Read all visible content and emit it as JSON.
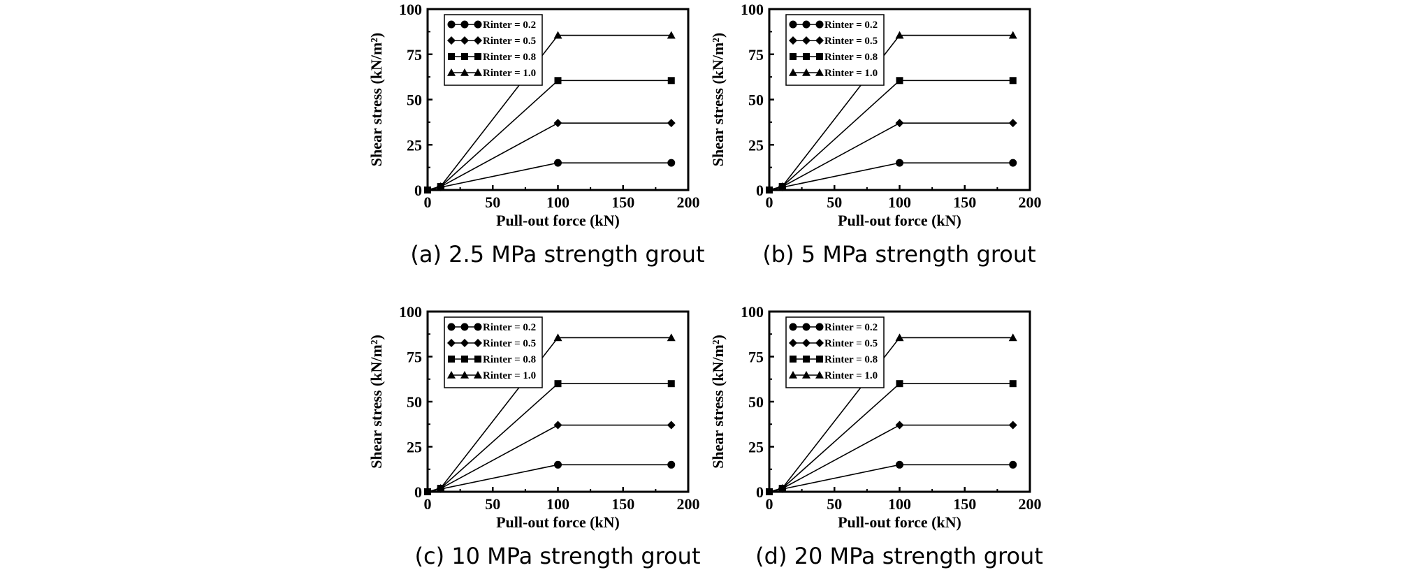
{
  "chart_data": [
    {
      "type": "line",
      "caption": "(a) 2.5 MPa strength grout",
      "xlabel": "Pull-out force (kN)",
      "ylabel": "Shear stress (kN/m²)",
      "xlim": [
        0,
        200
      ],
      "ylim": [
        0,
        100
      ],
      "xticks": [
        0,
        50,
        100,
        150,
        200
      ],
      "yticks": [
        0,
        25,
        50,
        75,
        100
      ],
      "legend_position": "top-left",
      "series": [
        {
          "name": "Rinter = 0.2",
          "marker": "circle",
          "x": [
            0,
            10,
            100,
            187
          ],
          "y": [
            0,
            1.5,
            15,
            15
          ]
        },
        {
          "name": "Rinter = 0.5",
          "marker": "diamond",
          "x": [
            0,
            10,
            100,
            187
          ],
          "y": [
            0,
            1.8,
            37,
            37
          ]
        },
        {
          "name": "Rinter = 0.8",
          "marker": "square",
          "x": [
            0,
            10,
            100,
            187
          ],
          "y": [
            0,
            1.9,
            60.5,
            60.5
          ]
        },
        {
          "name": "Rinter = 1.0",
          "marker": "triangle",
          "x": [
            0,
            10,
            100,
            187
          ],
          "y": [
            0,
            2.0,
            85.5,
            85.5
          ]
        }
      ]
    },
    {
      "type": "line",
      "caption": "(b) 5 MPa strength grout",
      "xlabel": "Pull-out force (kN)",
      "ylabel": "Shear stress (kN/m²)",
      "xlim": [
        0,
        200
      ],
      "ylim": [
        0,
        100
      ],
      "xticks": [
        0,
        50,
        100,
        150,
        200
      ],
      "yticks": [
        0,
        25,
        50,
        75,
        100
      ],
      "legend_position": "top-left",
      "series": [
        {
          "name": "Rinter = 0.2",
          "marker": "circle",
          "x": [
            0,
            10,
            100,
            187
          ],
          "y": [
            0,
            1.5,
            15,
            15
          ]
        },
        {
          "name": "Rinter = 0.5",
          "marker": "diamond",
          "x": [
            0,
            10,
            100,
            187
          ],
          "y": [
            0,
            1.8,
            37,
            37
          ]
        },
        {
          "name": "Rinter = 0.8",
          "marker": "square",
          "x": [
            0,
            10,
            100,
            187
          ],
          "y": [
            0,
            1.9,
            60.5,
            60.5
          ]
        },
        {
          "name": "Rinter = 1.0",
          "marker": "triangle",
          "x": [
            0,
            10,
            100,
            187
          ],
          "y": [
            0,
            2.0,
            85.5,
            85.5
          ]
        }
      ]
    },
    {
      "type": "line",
      "caption": "(c) 10 MPa strength grout",
      "xlabel": "Pull-out force (kN)",
      "ylabel": "Shear stress (kN/m²)",
      "xlim": [
        0,
        200
      ],
      "ylim": [
        0,
        100
      ],
      "xticks": [
        0,
        50,
        100,
        150,
        200
      ],
      "yticks": [
        0,
        25,
        50,
        75,
        100
      ],
      "legend_position": "top-left",
      "series": [
        {
          "name": "Rinter = 0.2",
          "marker": "circle",
          "x": [
            0,
            10,
            100,
            187
          ],
          "y": [
            0,
            1.5,
            15,
            15
          ]
        },
        {
          "name": "Rinter = 0.5",
          "marker": "diamond",
          "x": [
            0,
            10,
            100,
            187
          ],
          "y": [
            0,
            1.8,
            37,
            37
          ]
        },
        {
          "name": "Rinter = 0.8",
          "marker": "square",
          "x": [
            0,
            10,
            100,
            187
          ],
          "y": [
            0,
            1.9,
            60,
            60
          ]
        },
        {
          "name": "Rinter = 1.0",
          "marker": "triangle",
          "x": [
            0,
            10,
            100,
            187
          ],
          "y": [
            0,
            2.0,
            85.5,
            85.5
          ]
        }
      ]
    },
    {
      "type": "line",
      "caption": "(d) 20 MPa strength grout",
      "xlabel": "Pull-out force (kN)",
      "ylabel": "Shear stress (kN/m²)",
      "xlim": [
        0,
        200
      ],
      "ylim": [
        0,
        100
      ],
      "xticks": [
        0,
        50,
        100,
        150,
        200
      ],
      "yticks": [
        0,
        25,
        50,
        75,
        100
      ],
      "legend_position": "top-left",
      "series": [
        {
          "name": "Rinter = 0.2",
          "marker": "circle",
          "x": [
            0,
            10,
            100,
            187
          ],
          "y": [
            0,
            1.5,
            15,
            15
          ]
        },
        {
          "name": "Rinter = 0.5",
          "marker": "diamond",
          "x": [
            0,
            10,
            100,
            187
          ],
          "y": [
            0,
            1.8,
            37,
            37
          ]
        },
        {
          "name": "Rinter = 0.8",
          "marker": "square",
          "x": [
            0,
            10,
            100,
            187
          ],
          "y": [
            0,
            1.9,
            60,
            60
          ]
        },
        {
          "name": "Rinter = 1.0",
          "marker": "triangle",
          "x": [
            0,
            10,
            100,
            187
          ],
          "y": [
            0,
            2.0,
            85.5,
            85.5
          ]
        }
      ]
    }
  ]
}
